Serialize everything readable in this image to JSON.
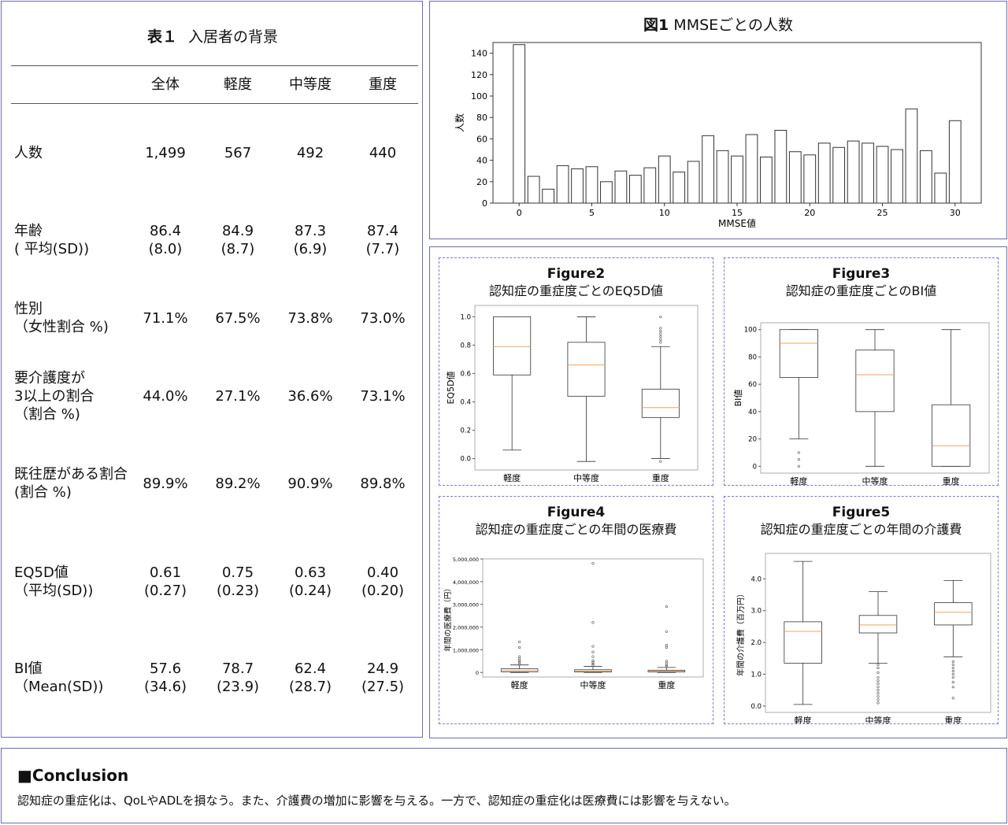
{
  "table1": {
    "title_bold": "表１",
    "title_text": "入居者の背景",
    "columns": [
      "全体",
      "軽度",
      "中等度",
      "重度"
    ],
    "rows": [
      {
        "label": [
          "人数"
        ],
        "values": [
          [
            "1,499"
          ],
          [
            "567"
          ],
          [
            "492"
          ],
          [
            "440"
          ]
        ]
      },
      {
        "label": [
          "年齢",
          "( 平均(SD))"
        ],
        "values": [
          [
            "86.4",
            "(8.0)"
          ],
          [
            "84.9",
            "(8.7)"
          ],
          [
            "87.3",
            "(6.9)"
          ],
          [
            "87.4",
            "(7.7)"
          ]
        ]
      },
      {
        "label": [
          "性別",
          "（女性割合 %)"
        ],
        "values": [
          [
            "71.1%"
          ],
          [
            "67.5%"
          ],
          [
            "73.8%"
          ],
          [
            "73.0%"
          ]
        ]
      },
      {
        "label": [
          "要介護度が",
          "3以上の割合",
          "（割合 %)"
        ],
        "values": [
          [
            "44.0%"
          ],
          [
            "27.1%"
          ],
          [
            "36.6%"
          ],
          [
            "73.1%"
          ]
        ]
      },
      {
        "label": [
          "既往歴がある割合",
          "(割合 %)"
        ],
        "values": [
          [
            "89.9%"
          ],
          [
            "89.2%"
          ],
          [
            "90.9%"
          ],
          [
            "89.8%"
          ]
        ]
      },
      {
        "label": [
          "EQ5D値",
          "（平均(SD))"
        ],
        "values": [
          [
            "0.61",
            "(0.27)"
          ],
          [
            "0.75",
            "(0.23)"
          ],
          [
            "0.63",
            "(0.24)"
          ],
          [
            "0.40",
            "(0.20)"
          ]
        ]
      },
      {
        "label": [
          "BI値",
          "（Mean(SD))"
        ],
        "values": [
          [
            "57.6",
            "(34.6)"
          ],
          [
            "78.7",
            "(23.9)"
          ],
          [
            "62.4",
            "(28.7)"
          ],
          [
            "24.9",
            "(27.5)"
          ]
        ]
      }
    ]
  },
  "chart_data": [
    {
      "id": "fig1",
      "type": "bar",
      "title_bold": "図1",
      "title": "MMSEごとの人数",
      "xlabel": "MMSE値",
      "ylabel": "人数",
      "x": [
        0,
        1,
        2,
        3,
        4,
        5,
        6,
        7,
        8,
        9,
        10,
        11,
        12,
        13,
        14,
        15,
        16,
        17,
        18,
        19,
        20,
        21,
        22,
        23,
        24,
        25,
        26,
        27,
        28,
        29,
        30
      ],
      "values": [
        148,
        25,
        13,
        35,
        32,
        34,
        20,
        30,
        26,
        33,
        44,
        29,
        39,
        63,
        49,
        44,
        64,
        43,
        68,
        48,
        45,
        56,
        52,
        58,
        56,
        53,
        50,
        88,
        49,
        28,
        77
      ],
      "xticks": [
        0,
        5,
        10,
        15,
        20,
        25,
        30
      ],
      "yticks": [
        0,
        20,
        40,
        60,
        80,
        100,
        120,
        140
      ],
      "ylim": [
        0,
        150
      ],
      "xlim": [
        -1.8,
        31.8
      ],
      "grid": false
    },
    {
      "id": "fig2",
      "type": "box",
      "title_bold": "Figure2",
      "title": "認知症の重症度ごとのEQ5D値",
      "ylabel": "EQ5D値",
      "categories": [
        "軽度",
        "中等度",
        "重度"
      ],
      "ylim": [
        -0.08,
        1.08
      ],
      "yticks": [
        0.0,
        0.2,
        0.4,
        0.6,
        0.8,
        1.0
      ],
      "ytick_labels": [
        "0.0",
        "0.2",
        "0.4",
        "0.6",
        "0.8",
        "1.0"
      ],
      "boxes": [
        {
          "whislo": 0.06,
          "q1": 0.59,
          "med": 0.79,
          "q3": 1.0,
          "whishi": 1.0,
          "fliers": []
        },
        {
          "whislo": -0.02,
          "q1": 0.44,
          "med": 0.66,
          "q3": 0.82,
          "whishi": 1.0,
          "fliers": []
        },
        {
          "whislo": 0.0,
          "q1": 0.29,
          "med": 0.36,
          "q3": 0.49,
          "whishi": 0.79,
          "fliers": [
            -0.02,
            0.82,
            0.84,
            0.86,
            0.88,
            0.9,
            0.92,
            1.0
          ]
        }
      ]
    },
    {
      "id": "fig3",
      "type": "box",
      "title_bold": "Figure3",
      "title": "認知症の重症度ごとのBI値",
      "ylabel": "BI値",
      "categories": [
        "軽度",
        "中等度",
        "重度"
      ],
      "ylim": [
        -5,
        105
      ],
      "yticks": [
        0,
        20,
        40,
        60,
        80,
        100
      ],
      "ytick_labels": [
        "0",
        "20",
        "40",
        "60",
        "80",
        "100"
      ],
      "boxes": [
        {
          "whislo": 20,
          "q1": 65,
          "med": 90,
          "q3": 100,
          "whishi": 100,
          "fliers": [
            0,
            5,
            10
          ]
        },
        {
          "whislo": 0,
          "q1": 40,
          "med": 67,
          "q3": 85,
          "whishi": 100,
          "fliers": []
        },
        {
          "whislo": 0,
          "q1": 0,
          "med": 15,
          "q3": 45,
          "whishi": 100,
          "fliers": []
        }
      ]
    },
    {
      "id": "fig4",
      "type": "box",
      "title_bold": "Figure4",
      "title": "認知症の重症度ごとの年間の医療費",
      "ylabel": "年間の医療費（円）",
      "categories": [
        "軽度",
        "中等度",
        "重度"
      ],
      "ylim": [
        -200000,
        5000000
      ],
      "yticks": [
        0,
        1000000,
        2000000,
        3000000,
        4000000,
        5000000
      ],
      "ytick_labels": [
        "0",
        "1,000,000",
        "2,000,000",
        "3,000,000",
        "4,000,000",
        "5,000,000"
      ],
      "boxes": [
        {
          "whislo": 0,
          "q1": 30000,
          "med": 80000,
          "q3": 160000,
          "whishi": 330000,
          "fliers": [
            380000,
            450000,
            520000,
            600000,
            700000,
            1100000,
            1350000
          ]
        },
        {
          "whislo": 0,
          "q1": 20000,
          "med": 60000,
          "q3": 120000,
          "whishi": 270000,
          "fliers": [
            320000,
            380000,
            450000,
            520000,
            700000,
            900000,
            1150000,
            2200000,
            4800000
          ]
        },
        {
          "whislo": 0,
          "q1": 20000,
          "med": 50000,
          "q3": 100000,
          "whishi": 220000,
          "fliers": [
            260000,
            320000,
            400000,
            500000,
            1100000,
            1200000,
            1800000,
            2900000
          ]
        }
      ]
    },
    {
      "id": "fig5",
      "type": "box",
      "title_bold": "Figure5",
      "title": "認知症の重症度ごとの年間の介護費",
      "ylabel": "年間の介護費（百万円）",
      "categories": [
        "軽度",
        "中等度",
        "重度"
      ],
      "ylim": [
        -0.2,
        4.8
      ],
      "yticks": [
        0.0,
        1.0,
        2.0,
        3.0,
        4.0
      ],
      "ytick_labels": [
        "0.0",
        "1.0",
        "2.0",
        "3.0",
        "4.0"
      ],
      "boxes": [
        {
          "whislo": 0.05,
          "q1": 1.35,
          "med": 2.35,
          "q3": 2.65,
          "whishi": 4.55,
          "fliers": []
        },
        {
          "whislo": 1.35,
          "q1": 2.3,
          "med": 2.55,
          "q3": 2.85,
          "whishi": 3.6,
          "fliers": [
            0.1,
            0.2,
            0.3,
            0.4,
            0.5,
            0.6,
            0.7,
            0.8,
            0.9,
            1.05,
            1.2,
            1.3
          ]
        },
        {
          "whislo": 1.55,
          "q1": 2.55,
          "med": 2.95,
          "q3": 3.25,
          "whishi": 3.95,
          "fliers": [
            0.25,
            0.6,
            0.75,
            0.9,
            1.0,
            1.1,
            1.2,
            1.3,
            1.4
          ]
        }
      ]
    }
  ],
  "conclusion": {
    "heading": "■Conclusion",
    "text": "認知症の重症化は、QoLやADLを損なう。また、介護費の増加に影響を与える。一方で、認知症の重症化は医療費には影響を与えない。"
  },
  "colors": {
    "panel_border": "#6b6bb8",
    "median": "#f2a45c",
    "box": "#333333"
  }
}
